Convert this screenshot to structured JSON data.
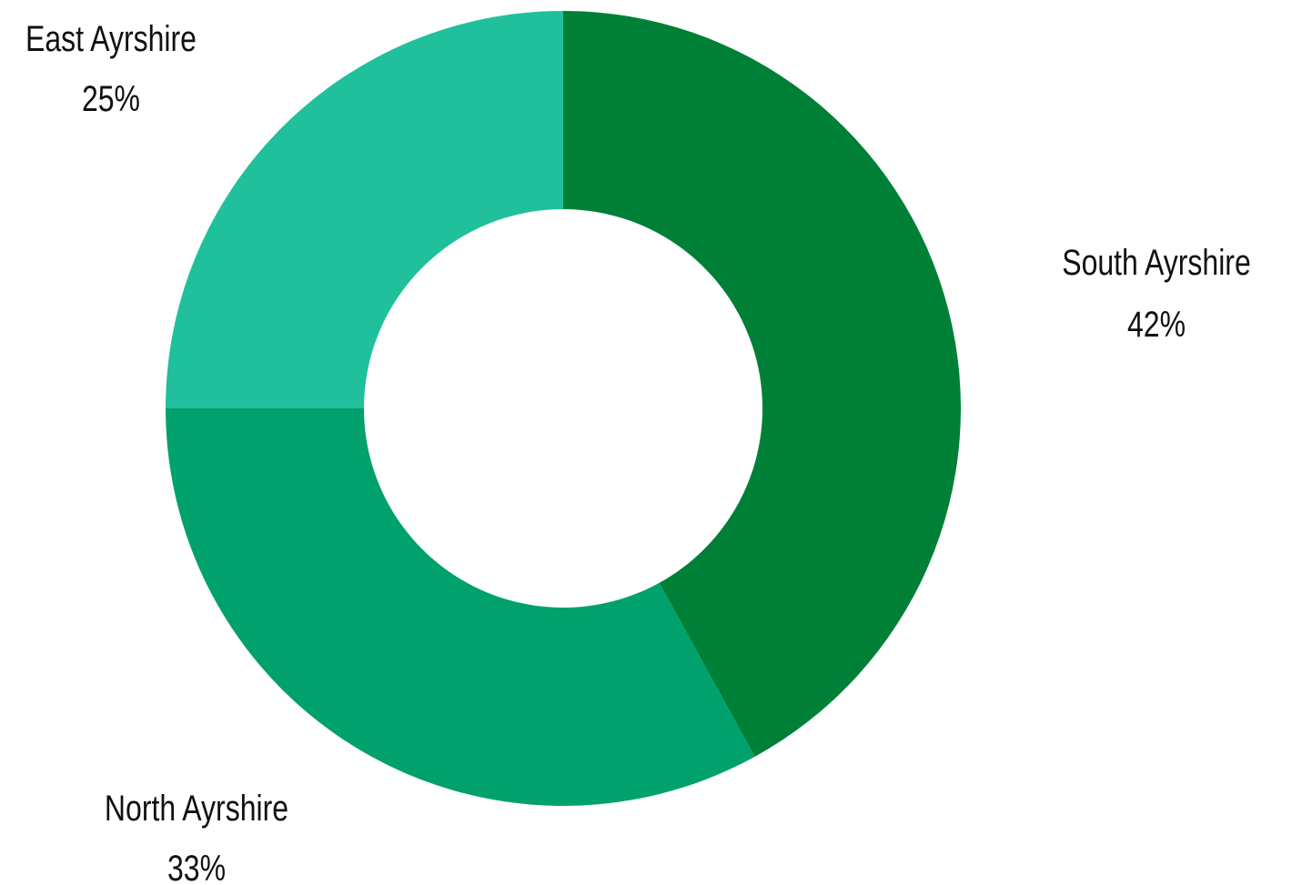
{
  "chart_data": {
    "type": "pie",
    "variant": "donut",
    "title": "",
    "categories": [
      "South Ayrshire",
      "North Ayrshire",
      "East Ayrshire"
    ],
    "values": [
      42,
      33,
      25
    ],
    "value_labels": [
      "42%",
      "33%",
      "25%"
    ],
    "unit": "%",
    "colors": [
      "#008037",
      "#00A16C",
      "#1FC09B"
    ],
    "start_angle": "12 o'clock",
    "direction": "clockwise",
    "legend": "none",
    "labels_position": "outside"
  }
}
